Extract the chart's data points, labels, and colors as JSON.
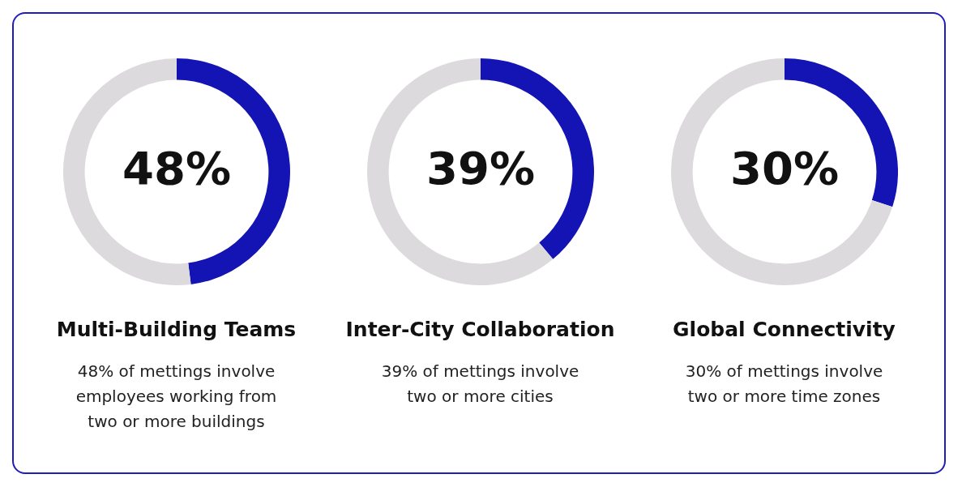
{
  "chart_data": [
    {
      "type": "donut",
      "title": "Multi-Building Teams",
      "subtitle": "48% of mettings involve employees working from two or more buildings",
      "categories": [
        null,
        null
      ],
      "values": [
        48,
        52
      ],
      "colors": [
        "#1414b4",
        "#dddadd"
      ],
      "value_labels": [
        "48%",
        null
      ]
    },
    {
      "type": "donut",
      "title": "Inter-City Collaboration",
      "subtitle": "39% of mettings involve two or more cities",
      "categories": [
        null,
        null
      ],
      "values": [
        39,
        61
      ],
      "colors": [
        "#1414b4",
        "#dddadd"
      ],
      "value_labels": [
        "39%",
        null
      ]
    },
    {
      "type": "donut",
      "title": "Global Connectivity",
      "subtitle": "30% of mettings involve two or more time zones",
      "categories": [
        null,
        null
      ],
      "values": [
        30,
        70
      ],
      "colors": [
        "#1414b4",
        "#dddadd"
      ],
      "value_labels": [
        "30%",
        null
      ]
    }
  ]
}
